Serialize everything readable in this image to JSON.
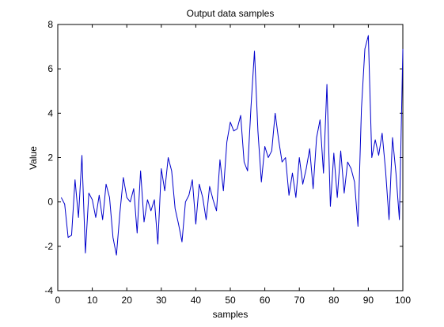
{
  "chart_data": {
    "type": "line",
    "title": "Output data samples",
    "xlabel": "samples",
    "ylabel": "Value",
    "xlim": [
      0,
      100
    ],
    "ylim": [
      -4,
      8
    ],
    "xticks": [
      0,
      10,
      20,
      30,
      40,
      50,
      60,
      70,
      80,
      90,
      100
    ],
    "yticks": [
      -4,
      -2,
      0,
      2,
      4,
      6,
      8
    ],
    "grid": false,
    "line_color": "#0000cc",
    "series": [
      {
        "x": [
          1,
          2,
          3,
          4,
          5,
          6,
          7,
          8,
          9,
          10,
          11,
          12,
          13,
          14,
          15,
          16,
          17,
          18,
          19,
          20,
          21,
          22,
          23,
          24,
          25,
          26,
          27,
          28,
          29,
          30,
          31,
          32,
          33,
          34,
          35,
          36,
          37,
          38,
          39,
          40,
          41,
          42,
          43,
          44,
          45,
          46,
          47,
          48,
          49,
          50,
          51,
          52,
          53,
          54,
          55,
          56,
          57,
          58,
          59,
          60,
          61,
          62,
          63,
          64,
          65,
          66,
          67,
          68,
          69,
          70,
          71,
          72,
          73,
          74,
          75,
          76,
          77,
          78,
          79,
          80,
          81,
          82,
          83,
          84,
          85,
          86,
          87,
          88,
          89,
          90,
          91,
          92,
          93,
          94,
          95,
          96,
          97,
          98,
          99,
          100
        ],
        "y": [
          0.2,
          -0.1,
          -1.6,
          -1.5,
          1.0,
          -0.7,
          2.1,
          -2.3,
          0.4,
          0.1,
          -0.7,
          0.3,
          -0.8,
          0.8,
          0.2,
          -1.6,
          -2.4,
          -0.5,
          1.1,
          0.2,
          0.0,
          0.6,
          -1.4,
          1.4,
          -0.9,
          0.1,
          -0.4,
          0.1,
          -1.9,
          1.5,
          0.5,
          2.0,
          1.4,
          -0.3,
          -1.0,
          -1.8,
          0.0,
          0.3,
          1.0,
          -1.0,
          0.8,
          0.2,
          -0.8,
          0.7,
          0.1,
          -0.4,
          1.9,
          0.5,
          2.7,
          3.6,
          3.2,
          3.3,
          3.9,
          1.8,
          1.4,
          4.3,
          6.8,
          3.2,
          0.9,
          2.5,
          2.0,
          2.3,
          4.0,
          2.8,
          1.8,
          2.0,
          0.3,
          1.3,
          0.2,
          2.0,
          0.8,
          1.5,
          2.4,
          0.6,
          2.9,
          3.7,
          1.3,
          5.3,
          -0.2,
          2.2,
          0.2,
          2.3,
          0.4,
          1.8,
          1.5,
          0.9,
          -1.1,
          4.2,
          6.9,
          7.5,
          2.0,
          2.8,
          2.1,
          3.1,
          1.4,
          -0.8,
          2.9,
          1.3,
          -0.8,
          6.9
        ]
      }
    ]
  }
}
